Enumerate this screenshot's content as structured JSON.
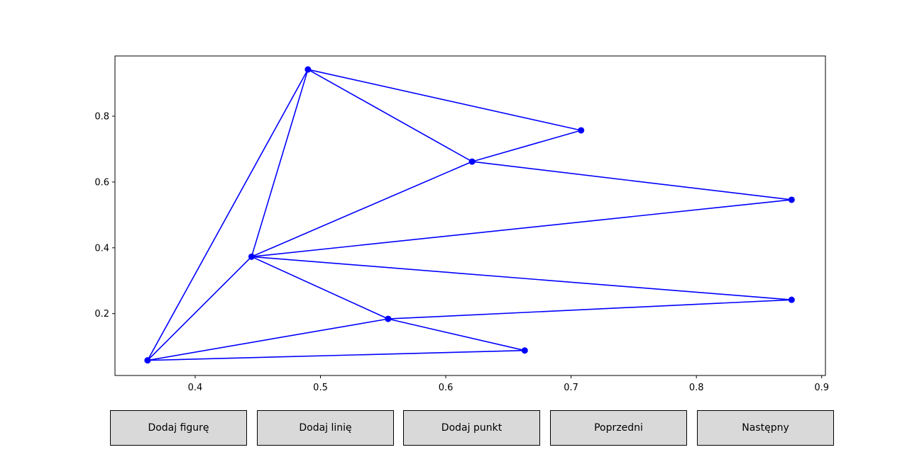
{
  "chart_data": {
    "type": "line",
    "title": "",
    "xlabel": "",
    "ylabel": "",
    "xlim": [
      0.336,
      0.903
    ],
    "ylim": [
      0.012,
      0.983
    ],
    "x_ticks": [
      0.4,
      0.5,
      0.6,
      0.7,
      0.8,
      0.9
    ],
    "x_tick_labels": [
      "0.4",
      "0.5",
      "0.6",
      "0.7",
      "0.8",
      "0.9"
    ],
    "y_ticks": [
      0.2,
      0.4,
      0.6,
      0.8
    ],
    "y_tick_labels": [
      "0.2",
      "0.4",
      "0.6",
      "0.8"
    ],
    "grid": false,
    "color": "#0000ff",
    "points": [
      {
        "x": 0.362,
        "y": 0.058
      },
      {
        "x": 0.445,
        "y": 0.373
      },
      {
        "x": 0.49,
        "y": 0.942
      },
      {
        "x": 0.554,
        "y": 0.184
      },
      {
        "x": 0.621,
        "y": 0.662
      },
      {
        "x": 0.663,
        "y": 0.088
      },
      {
        "x": 0.708,
        "y": 0.757
      },
      {
        "x": 0.876,
        "y": 0.546
      },
      {
        "x": 0.876,
        "y": 0.242
      }
    ],
    "segments": [
      [
        [
          0.362,
          0.058
        ],
        [
          0.49,
          0.942
        ]
      ],
      [
        [
          0.362,
          0.058
        ],
        [
          0.445,
          0.373
        ]
      ],
      [
        [
          0.362,
          0.058
        ],
        [
          0.554,
          0.184
        ]
      ],
      [
        [
          0.362,
          0.058
        ],
        [
          0.663,
          0.088
        ]
      ],
      [
        [
          0.445,
          0.373
        ],
        [
          0.49,
          0.942
        ]
      ],
      [
        [
          0.445,
          0.373
        ],
        [
          0.621,
          0.662
        ]
      ],
      [
        [
          0.445,
          0.373
        ],
        [
          0.876,
          0.546
        ]
      ],
      [
        [
          0.445,
          0.373
        ],
        [
          0.876,
          0.242
        ]
      ],
      [
        [
          0.445,
          0.373
        ],
        [
          0.554,
          0.184
        ]
      ],
      [
        [
          0.49,
          0.942
        ],
        [
          0.708,
          0.757
        ]
      ],
      [
        [
          0.49,
          0.942
        ],
        [
          0.621,
          0.662
        ]
      ],
      [
        [
          0.621,
          0.662
        ],
        [
          0.708,
          0.757
        ]
      ],
      [
        [
          0.621,
          0.662
        ],
        [
          0.876,
          0.546
        ]
      ],
      [
        [
          0.554,
          0.184
        ],
        [
          0.876,
          0.242
        ]
      ],
      [
        [
          0.554,
          0.184
        ],
        [
          0.663,
          0.088
        ]
      ]
    ]
  },
  "buttons": {
    "add_figure": "Dodaj figurę",
    "add_line": "Dodaj linię",
    "add_point": "Dodaj punkt",
    "previous": "Poprzedni",
    "next": "Następny"
  }
}
